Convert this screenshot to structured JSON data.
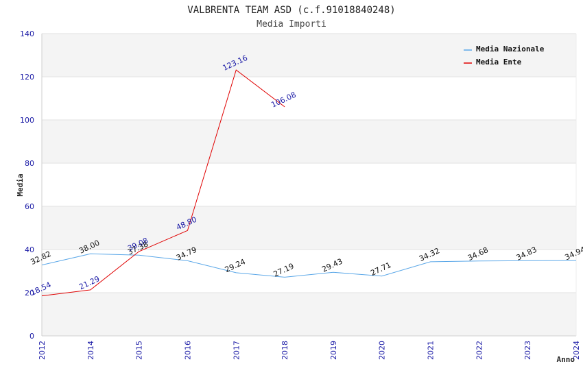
{
  "chart_data": {
    "type": "line",
    "title": "VALBRENTA TEAM ASD (c.f.91018840248)",
    "subtitle": "Media Importi",
    "ylabel": "Media",
    "xlabel": "Anno",
    "ylim": [
      0,
      140
    ],
    "yticks": [
      0,
      20,
      40,
      60,
      80,
      100,
      120,
      140
    ],
    "categories": [
      "2012",
      "2014",
      "2015",
      "2016",
      "2017",
      "2018",
      "2019",
      "2020",
      "2021",
      "2022",
      "2023",
      "2024"
    ],
    "grid": true,
    "legend_position": "top-right",
    "series": [
      {
        "name": "Media Nazionale",
        "color": "#5aa7e8",
        "label_color": "#111111",
        "values": [
          32.82,
          38.0,
          37.38,
          34.79,
          29.24,
          27.19,
          29.43,
          27.71,
          34.32,
          34.68,
          34.83,
          34.94
        ],
        "labels": [
          "32.82",
          "38.00",
          "37.38",
          "34.79",
          "29.24",
          "27.19",
          "29.43",
          "27.71",
          "34.32",
          "34.68",
          "34.83",
          "34.94"
        ]
      },
      {
        "name": "Media Ente",
        "color": "#e00000",
        "label_color": "#1a1aa6",
        "values": [
          18.54,
          21.29,
          39.08,
          48.8,
          123.16,
          106.08,
          null,
          null,
          null,
          null,
          null,
          null
        ],
        "labels": [
          "18.54",
          "21.29",
          "39.08",
          "48.80",
          "123.16",
          "106.08",
          "",
          "",
          "",
          "",
          "",
          ""
        ]
      }
    ]
  }
}
